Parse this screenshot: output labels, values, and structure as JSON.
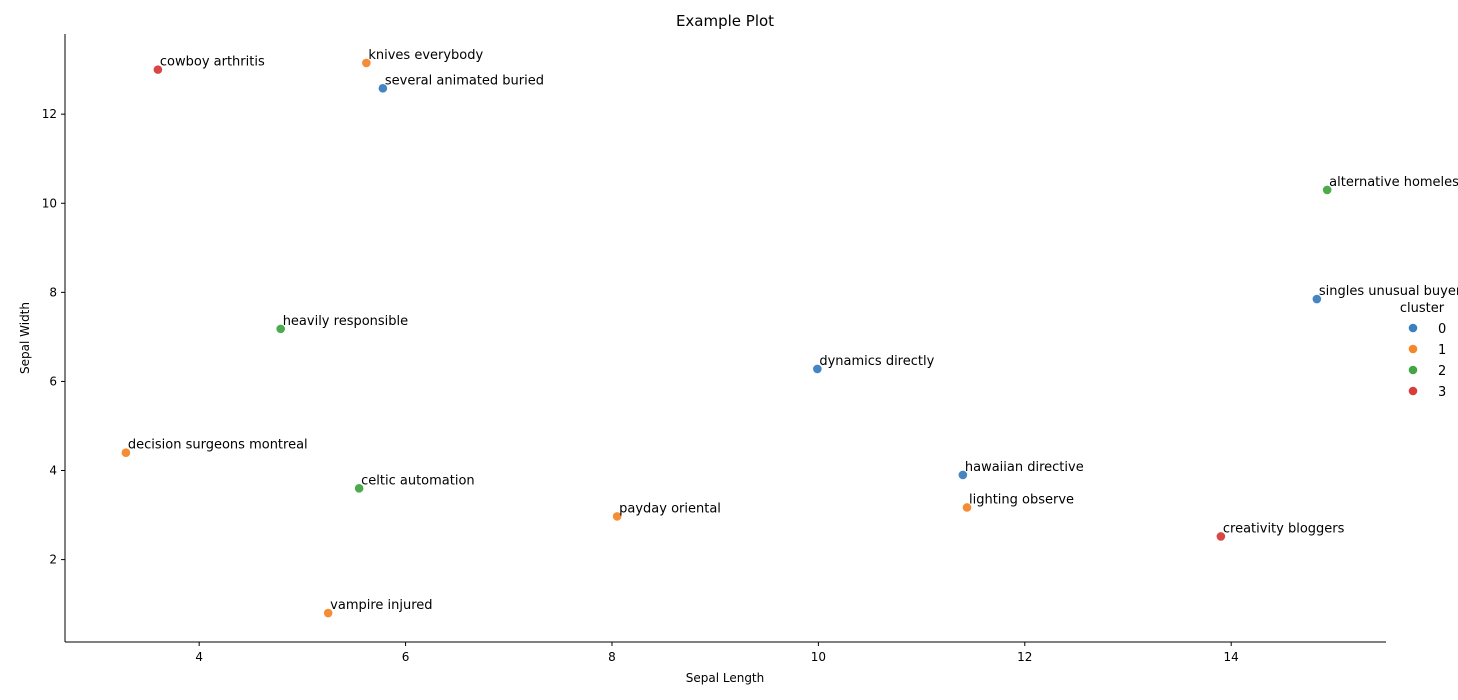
{
  "chart_data": {
    "type": "scatter",
    "title": "Example Plot",
    "xlabel": "Sepal Length",
    "ylabel": "Sepal Width",
    "xlim": [
      2.7,
      15.5
    ],
    "ylim": [
      0.15,
      13.8
    ],
    "xticks": [
      4,
      6,
      8,
      10,
      12,
      14
    ],
    "yticks": [
      2,
      4,
      6,
      8,
      10,
      12
    ],
    "grid": false,
    "legend": {
      "title": "cluster",
      "placement": "right",
      "entries": [
        {
          "label": "0",
          "color": "#3b80bf"
        },
        {
          "label": "1",
          "color": "#f5862a"
        },
        {
          "label": "2",
          "color": "#43a642"
        },
        {
          "label": "3",
          "color": "#d83c3b"
        }
      ]
    },
    "points": [
      {
        "x": 3.6,
        "y": 13.0,
        "cluster": 3,
        "label": "cowboy arthritis"
      },
      {
        "x": 5.62,
        "y": 13.15,
        "cluster": 1,
        "label": "knives everybody"
      },
      {
        "x": 5.78,
        "y": 12.58,
        "cluster": 0,
        "label": "several animated buried"
      },
      {
        "x": 14.93,
        "y": 10.3,
        "cluster": 2,
        "label": "alternative homeless"
      },
      {
        "x": 14.83,
        "y": 7.85,
        "cluster": 0,
        "label": "singles unusual buyer"
      },
      {
        "x": 4.79,
        "y": 7.18,
        "cluster": 2,
        "label": "heavily responsible"
      },
      {
        "x": 9.99,
        "y": 6.28,
        "cluster": 0,
        "label": "dynamics directly"
      },
      {
        "x": 3.29,
        "y": 4.4,
        "cluster": 1,
        "label": "decision surgeons montreal"
      },
      {
        "x": 11.4,
        "y": 3.9,
        "cluster": 0,
        "label": "hawaiian directive"
      },
      {
        "x": 5.55,
        "y": 3.6,
        "cluster": 2,
        "label": "celtic automation"
      },
      {
        "x": 11.44,
        "y": 3.17,
        "cluster": 1,
        "label": "lighting observe"
      },
      {
        "x": 8.05,
        "y": 2.97,
        "cluster": 1,
        "label": "payday oriental"
      },
      {
        "x": 13.9,
        "y": 2.52,
        "cluster": 3,
        "label": "creativity bloggers"
      },
      {
        "x": 5.25,
        "y": 0.8,
        "cluster": 1,
        "label": "vampire injured"
      }
    ]
  }
}
